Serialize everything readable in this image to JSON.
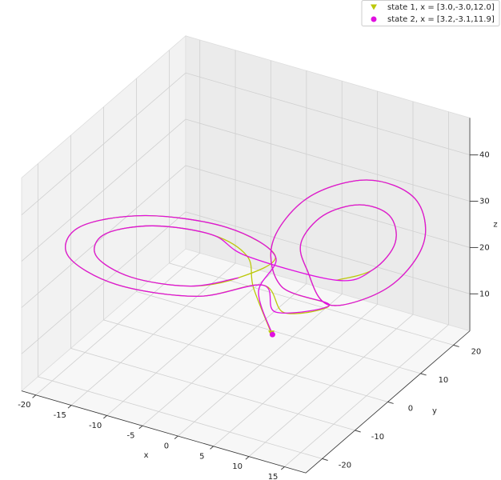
{
  "chart_data": {
    "type": "line3d",
    "xlabel": "x",
    "ylabel": "y",
    "zlabel": "z",
    "xlim": [
      -22,
      18
    ],
    "ylim": [
      -25,
      25
    ],
    "zlim": [
      2,
      48
    ],
    "xticks": [
      -20,
      -15,
      -10,
      -5,
      0,
      5,
      10,
      15
    ],
    "yticks": [
      -20,
      -10,
      0,
      10,
      20
    ],
    "zticks": [
      10,
      20,
      30,
      40
    ],
    "grid": true,
    "legend": "upper right",
    "series": [
      {
        "name": "state 1, x = [3.0,-3.0,12.0]",
        "color": "#bcc80a",
        "marker": "v",
        "x": [
          3,
          0,
          -0.5,
          -2.8,
          -8.5,
          -14.2,
          -16.5,
          -14.2,
          -8.5,
          -2.8,
          2.5,
          -0.7,
          -8.5,
          -16.3,
          -19.5,
          -16.3,
          -8.5,
          -0.7,
          3,
          8.5,
          2.8,
          0.5,
          2.8,
          8.5,
          14.2,
          16.5,
          14.2,
          8.5,
          5,
          3.5,
          5,
          8.5,
          12,
          13.5,
          12,
          8.5
        ],
        "y": [
          -3,
          -2,
          -2.8,
          -8.5,
          -14.2,
          -16.5,
          -14.2,
          -8.5,
          -2.8,
          -0.5,
          -0.7,
          -8.5,
          -16.3,
          -19.5,
          -16.3,
          -8.5,
          -0.7,
          2.5,
          1,
          2.8,
          0.5,
          2.8,
          8.5,
          14.2,
          16.5,
          14.2,
          8.5,
          2.8,
          3.5,
          5,
          8.5,
          12,
          13.5,
          12,
          8.5,
          5
        ],
        "z": [
          12,
          20,
          27,
          34.1,
          37,
          34.1,
          27,
          19.9,
          17,
          19.9,
          27,
          36.6,
          40.5,
          36.6,
          27,
          17.4,
          13.5,
          17.4,
          14,
          17,
          19.9,
          27,
          34.1,
          37,
          34.1,
          27,
          19.9,
          17,
          22.7,
          27,
          31.3,
          33,
          31.3,
          27,
          22.7,
          21
        ]
      },
      {
        "name": "state 2, x = [3.2,-3.1,11.9]",
        "color": "#e010e0",
        "marker": "o",
        "x": [
          3.2,
          0.5,
          2.5,
          -0.7,
          -8.5,
          -16.3,
          -19.5,
          -16.3,
          -8.5,
          -0.7,
          2,
          8.5,
          2.8,
          0.5,
          2.8,
          8.5,
          14.2,
          16.5,
          14.2,
          8.5,
          5,
          3.5,
          5,
          8.5,
          12,
          13.5,
          12,
          8.5,
          -0.5,
          -2.8,
          -8.5,
          -14.2,
          -16.5,
          -14.2,
          -8.5,
          -2.8
        ],
        "y": [
          -3.1,
          -1.5,
          -0.7,
          -8.5,
          -16.3,
          -19.5,
          -16.3,
          -8.5,
          -0.7,
          2.5,
          0.5,
          2.8,
          0.5,
          2.8,
          8.5,
          14.2,
          16.5,
          14.2,
          8.5,
          2.8,
          3.5,
          5,
          8.5,
          12,
          13.5,
          12,
          8.5,
          5,
          -2.8,
          -8.5,
          -14.2,
          -16.5,
          -14.2,
          -8.5,
          -2.8,
          -0.5
        ],
        "z": [
          11.9,
          19,
          27,
          36.6,
          40.5,
          36.6,
          27,
          17.4,
          13.5,
          17.4,
          14,
          17,
          19.9,
          27,
          34.1,
          37,
          34.1,
          27,
          19.9,
          17,
          22.7,
          27,
          31.3,
          33,
          31.3,
          27,
          22.7,
          21,
          27,
          34.1,
          37,
          34.1,
          27,
          19.9,
          17,
          19.9
        ]
      }
    ]
  }
}
